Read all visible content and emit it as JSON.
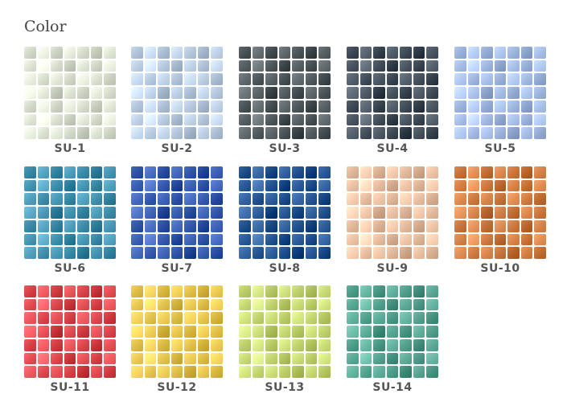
{
  "title": "Color",
  "swatches": [
    {
      "label": "SU-1",
      "color": "#d6dccb"
    },
    {
      "label": "SU-2",
      "color": "#b5c7dc"
    },
    {
      "label": "SU-3",
      "color": "#4b5459"
    },
    {
      "label": "SU-4",
      "color": "#3e4b56"
    },
    {
      "label": "SU-5",
      "color": "#9db4dd"
    },
    {
      "label": "SU-6",
      "color": "#3a8aa8"
    },
    {
      "label": "SU-7",
      "color": "#3055a9"
    },
    {
      "label": "SU-8",
      "color": "#1f4f8c"
    },
    {
      "label": "SU-9",
      "color": "#e2b99a"
    },
    {
      "label": "SU-10",
      "color": "#c9773c"
    },
    {
      "label": "SU-11",
      "color": "#d9434a"
    },
    {
      "label": "SU-12",
      "color": "#e0c048"
    },
    {
      "label": "SU-13",
      "color": "#bdd06a"
    },
    {
      "label": "SU-14",
      "color": "#4f9e8c"
    }
  ]
}
